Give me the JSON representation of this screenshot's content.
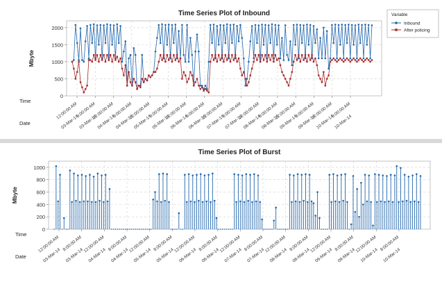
{
  "chart_data": [
    {
      "type": "line",
      "title": "Time Series Plot of Inbound",
      "ylabel": "Mbyte",
      "ylim": [
        0,
        2200
      ],
      "yticks": [
        0,
        500,
        1000,
        1500,
        2000
      ],
      "time_row_label": "Time",
      "date_row_label": "Date",
      "time_tick_labels": [
        "12:00:00 AM",
        "8:00:00 AM",
        "12:00:00 AM",
        "8:00:00 AM",
        "12:00:00 AM",
        "8:00:00 AM",
        "12:00:00 AM",
        "8:00:00 AM",
        "12:00:00 AM",
        "8:00:00 AM",
        "12:00:00 AM",
        "8:00:00 AM",
        "12:00:00 AM",
        "8:00:00 AM",
        "12:00:00 AM",
        "8:00:00 AM"
      ],
      "date_tick_labels": [
        "03-Mar-14",
        "03-Mar-14",
        "04-Mar-14",
        "04-Mar-14",
        "05-Mar-14",
        "05-Mar-14",
        "06-Mar-14",
        "06-Mar-14",
        "07-Mar-14",
        "07-Mar-14",
        "08-Mar-14",
        "08-Mar-14",
        "09-Mar-14",
        "09-Mar-14",
        "10-Mar-14",
        "10-Mar-14"
      ],
      "legend": {
        "title": "Variable",
        "entries": [
          "Inbound",
          "After policing"
        ],
        "placement": "top-right"
      },
      "grid": true,
      "series": [
        {
          "name": "Inbound",
          "color": "#2166ac",
          "values": [
            1000,
            1050,
            2080,
            1550,
            1050,
            1980,
            1050,
            1000,
            1600,
            2050,
            1100,
            2080,
            1550,
            2100,
            1100,
            2070,
            1500,
            2080,
            1100,
            2070,
            1550,
            2100,
            1050,
            2080,
            1500,
            2070,
            1100,
            2100,
            1550,
            2050,
            1000,
            1300,
            1600,
            300,
            1100,
            1200,
            300,
            1400,
            1200,
            200,
            300,
            300,
            1200,
            400,
            500,
            450,
            600,
            550,
            600,
            700,
            1300,
            1700,
            2080,
            1550,
            2100,
            1100,
            2080,
            1500,
            2090,
            1100,
            2080,
            1550,
            2090,
            1100,
            1900,
            1100,
            2080,
            1200,
            1000,
            2080,
            1000,
            1700,
            1200,
            300,
            1300,
            1800,
            1300,
            300,
            300,
            200,
            300,
            200,
            1000,
            2080,
            1550,
            2090,
            1100,
            2050,
            1500,
            2080,
            1100,
            2070,
            1550,
            2100,
            1100,
            2080,
            1550,
            2090,
            1100,
            2050,
            1600,
            2080,
            1700,
            1100,
            300,
            500,
            1000,
            1600,
            2050,
            1100,
            2080,
            1550,
            2070,
            1000,
            2090,
            1500,
            2080,
            1100,
            2070,
            1550,
            2100,
            1100,
            2080,
            1500,
            2070,
            1100,
            1700,
            1050,
            2070,
            1200,
            1050,
            1600,
            900,
            2080,
            1500,
            2090,
            1100,
            2080,
            1550,
            2070,
            1100,
            2090,
            1500,
            2080,
            1100,
            2050,
            1550,
            1950,
            1100,
            1700,
            1100,
            2000,
            1100,
            1900,
            800,
            1100,
            2080,
            1550,
            2090,
            1100,
            2080,
            1500,
            2090,
            1100,
            2080,
            1550,
            2090,
            1100,
            2080,
            1500,
            2070,
            1100,
            2090,
            1550,
            2080,
            1100,
            2090,
            1500,
            2080,
            1100,
            2070
          ]
        },
        {
          "name": "After policing",
          "color": "#a52a2a",
          "values": [
            1000,
            800,
            500,
            700,
            1000,
            400,
            250,
            100,
            200,
            300,
            1050,
            1050,
            1000,
            1200,
            1050,
            1200,
            1000,
            1200,
            1050,
            1200,
            1000,
            1200,
            1050,
            1200,
            1000,
            1200,
            1050,
            1150,
            1000,
            1100,
            800,
            600,
            900,
            300,
            700,
            400,
            300,
            500,
            400,
            200,
            300,
            250,
            500,
            400,
            500,
            450,
            600,
            550,
            600,
            700,
            700,
            800,
            1000,
            1200,
            1050,
            1200,
            1000,
            1200,
            1050,
            1200,
            1000,
            1200,
            1050,
            1200,
            1000,
            1100,
            500,
            700,
            600,
            400,
            500,
            700,
            600,
            300,
            400,
            500,
            300,
            200,
            250,
            150,
            200,
            150,
            100,
            1000,
            1200,
            1050,
            1200,
            1000,
            1200,
            1050,
            1200,
            1000,
            1200,
            1050,
            1200,
            1000,
            1200,
            1050,
            1200,
            1000,
            1100,
            800,
            600,
            700,
            500,
            300,
            400,
            600,
            800,
            1000,
            1200,
            1050,
            1200,
            1000,
            1200,
            1050,
            1200,
            1000,
            1200,
            1050,
            1200,
            1000,
            1200,
            1050,
            1100,
            900,
            700,
            600,
            500,
            400,
            300,
            500,
            700,
            1000,
            1200,
            1050,
            1200,
            1000,
            1200,
            1050,
            1200,
            1000,
            1200,
            1050,
            1200,
            1000,
            1100,
            900,
            600,
            500,
            400,
            700,
            300,
            500,
            600,
            1000,
            1050,
            1100,
            1050,
            1000,
            1050,
            1100,
            1050,
            1000,
            1050,
            1100,
            1050,
            1000,
            1050,
            1100,
            1050,
            1000,
            1050,
            1100,
            1050,
            1000,
            1050,
            1100,
            1050,
            1000,
            1050
          ]
        }
      ]
    },
    {
      "type": "line",
      "title": "Time Series Plot of Burst",
      "ylabel": "Mbyte",
      "ylim": [
        0,
        1100
      ],
      "yticks": [
        0,
        200,
        400,
        600,
        800,
        1000
      ],
      "time_row_label": "Time",
      "date_row_label": "Date",
      "time_tick_labels": [
        "12:00:00 AM",
        "8:00:00 AM",
        "12:00:00 AM",
        "8:00:00 AM",
        "12:00:00 AM",
        "8:00:00 AM",
        "12:00:00 AM",
        "8:00:00 AM",
        "12:00:00 AM",
        "8:00:00 AM",
        "12:00:00 AM",
        "8:00:00 AM",
        "12:00:00 AM",
        "8:00:00 AM",
        "12:00:00 AM",
        "8:00:00 AM"
      ],
      "date_tick_labels": [
        "03-Mar-14",
        "03-Mar-14",
        "04-Mar-14",
        "04-Mar-14",
        "05-Mar-14",
        "05-Mar-14",
        "06-Mar-14",
        "06-Mar-14",
        "07-Mar-14",
        "07-Mar-14",
        "08-Mar-14",
        "08-Mar-14",
        "09-Mar-14",
        "09-Mar-14",
        "10-Mar-14",
        "10-Mar-14"
      ],
      "grid": true,
      "series": [
        {
          "name": "Burst",
          "color": "#2166ac",
          "values": [
            0,
            1020,
            450,
            880,
            0,
            180,
            0,
            0,
            950,
            440,
            900,
            460,
            870,
            440,
            880,
            450,
            860,
            450,
            880,
            440,
            850,
            440,
            900,
            460,
            870,
            440,
            880,
            450,
            650,
            0,
            0,
            0,
            0,
            0,
            0,
            0,
            0,
            0,
            0,
            0,
            0,
            0,
            0,
            0,
            0,
            0,
            0,
            0,
            0,
            0,
            480,
            600,
            450,
            890,
            440,
            900,
            460,
            890,
            440,
            0,
            0,
            0,
            0,
            260,
            0,
            0,
            880,
            440,
            890,
            450,
            870,
            440,
            880,
            460,
            890,
            440,
            870,
            450,
            880,
            440,
            900,
            460,
            180,
            0,
            0,
            0,
            0,
            0,
            0,
            0,
            0,
            890,
            440,
            880,
            450,
            870,
            440,
            890,
            460,
            880,
            440,
            890,
            450,
            870,
            440,
            160,
            0,
            0,
            0,
            0,
            0,
            140,
            350,
            0,
            0,
            0,
            0,
            0,
            0,
            880,
            440,
            870,
            450,
            890,
            440,
            880,
            460,
            890,
            440,
            880,
            450,
            420,
            220,
            600,
            180,
            0,
            0,
            0,
            0,
            880,
            440,
            890,
            450,
            870,
            440,
            880,
            460,
            890,
            440,
            0,
            80,
            860,
            280,
            650,
            200,
            750,
            400,
            880,
            450,
            870,
            440,
            60,
            890,
            440,
            880,
            450,
            870,
            440,
            860,
            450,
            880,
            440,
            870,
            1020,
            440,
            990,
            450,
            880,
            460,
            850,
            440,
            870,
            450,
            890,
            440,
            860
          ]
        }
      ]
    }
  ]
}
